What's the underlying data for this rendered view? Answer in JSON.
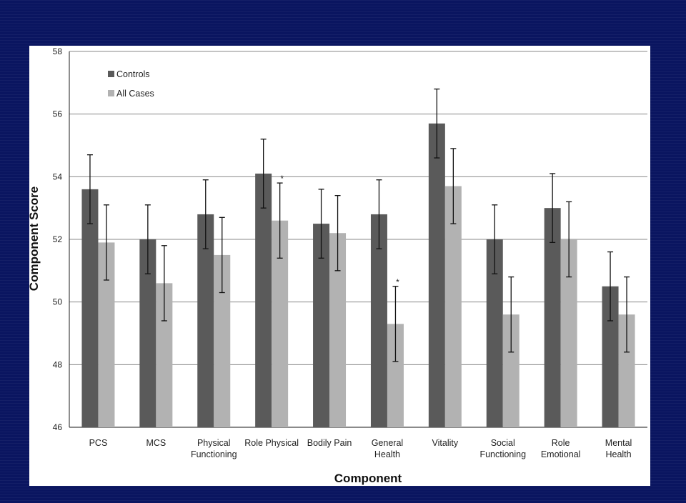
{
  "chart_data": {
    "type": "bar",
    "xlabel": "Component",
    "ylabel": "Component Score",
    "ylim": [
      46,
      58
    ],
    "yticks": [
      46,
      48,
      50,
      52,
      54,
      56,
      58
    ],
    "grid": true,
    "legend_position": "top-left",
    "categories": [
      [
        "PCS"
      ],
      [
        "MCS"
      ],
      [
        "Physical",
        "Functioning"
      ],
      [
        "Role Physical"
      ],
      [
        "Bodily Pain"
      ],
      [
        "General",
        "Health"
      ],
      [
        "Vitality"
      ],
      [
        "Social",
        "Functioning"
      ],
      [
        "Role",
        "Emotional"
      ],
      [
        "Mental",
        "Health"
      ]
    ],
    "series": [
      {
        "name": "Controls",
        "color": "#5a5a5a",
        "values": [
          53.6,
          52.0,
          52.8,
          54.1,
          52.5,
          52.8,
          55.7,
          52.0,
          53.0,
          50.5
        ],
        "error_low": [
          52.5,
          50.9,
          51.7,
          53.0,
          51.4,
          51.7,
          54.6,
          50.9,
          51.9,
          49.4
        ],
        "error_high": [
          54.7,
          53.1,
          53.9,
          55.2,
          53.6,
          53.9,
          56.8,
          53.1,
          54.1,
          51.6
        ]
      },
      {
        "name": "All Cases",
        "color": "#b2b2b2",
        "values": [
          51.9,
          50.6,
          51.5,
          52.6,
          52.2,
          49.3,
          53.7,
          49.6,
          52.0,
          49.6
        ],
        "error_low": [
          50.7,
          49.4,
          50.3,
          51.4,
          51.0,
          48.1,
          52.5,
          48.4,
          50.8,
          48.4
        ],
        "error_high": [
          53.1,
          51.8,
          52.7,
          53.8,
          53.4,
          50.5,
          54.9,
          50.8,
          53.2,
          50.8
        ]
      }
    ],
    "annotations": [
      {
        "category_index": 3,
        "series_index": 1,
        "text": "*"
      },
      {
        "category_index": 5,
        "series_index": 1,
        "text": "*"
      }
    ]
  }
}
